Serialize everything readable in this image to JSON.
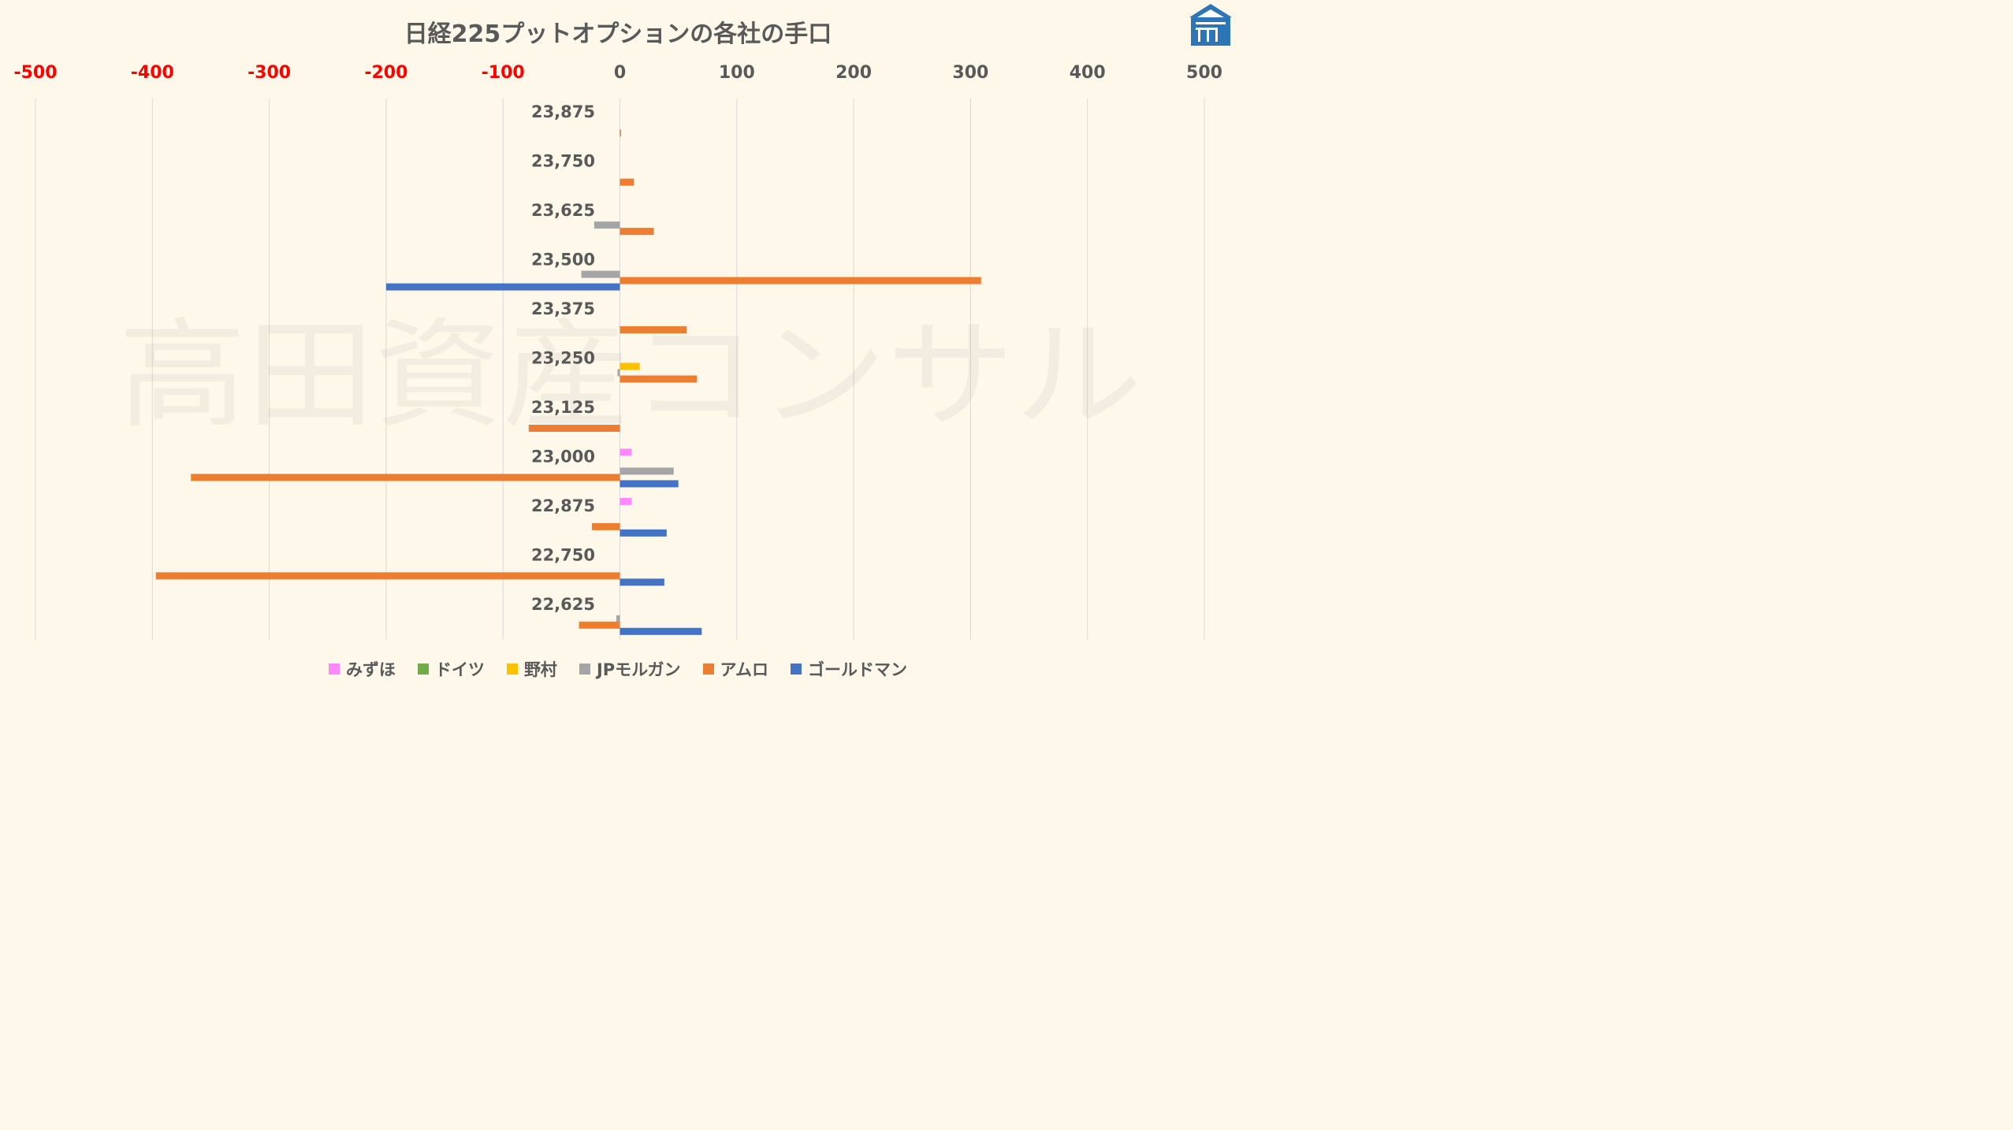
{
  "chart_data": {
    "type": "bar",
    "orientation": "horizontal",
    "title": "日経225プットオプションの各社の手口",
    "watermark": "高田資産コンサル",
    "xlim": [
      -500,
      500
    ],
    "x_ticks": [
      "-500",
      "-400",
      "-300",
      "-200",
      "-100",
      "0",
      "100",
      "200",
      "300",
      "400",
      "500"
    ],
    "tick_colors": {
      "negative": "#ff0000",
      "nonnegative": "#595959"
    },
    "grid": "vertical",
    "legend_position": "bottom",
    "categories": [
      "23,875",
      "23,750",
      "23,625",
      "23,500",
      "23,375",
      "23,250",
      "23,125",
      "23,000",
      "22,875",
      "22,750",
      "22,625"
    ],
    "series": [
      {
        "name": "みずほ",
        "color": "#ff88ff",
        "values": [
          0,
          0,
          0,
          0,
          0,
          0,
          0,
          10,
          10,
          0,
          0
        ]
      },
      {
        "name": "ドイツ",
        "color": "#70ad47",
        "values": [
          0,
          0,
          0,
          0,
          0,
          0,
          0,
          0,
          0,
          0,
          0
        ]
      },
      {
        "name": "野村",
        "color": "#ffc000",
        "values": [
          0,
          0,
          0,
          0,
          0,
          17,
          0,
          0,
          0,
          0,
          0
        ]
      },
      {
        "name": "JPモルガン",
        "color": "#a5a5a5",
        "values": [
          0,
          0,
          -22,
          -33,
          0,
          -2,
          0,
          46,
          0,
          0,
          -3
        ]
      },
      {
        "name": "アムロ",
        "color": "#ed7d31",
        "values": [
          1,
          12,
          29,
          309,
          57,
          66,
          -78,
          -367,
          -24,
          -397,
          -35
        ]
      },
      {
        "name": "ゴールドマン",
        "color": "#4472c4",
        "values": [
          0,
          0,
          0,
          -200,
          0,
          0,
          0,
          50,
          40,
          38,
          70
        ]
      }
    ]
  }
}
